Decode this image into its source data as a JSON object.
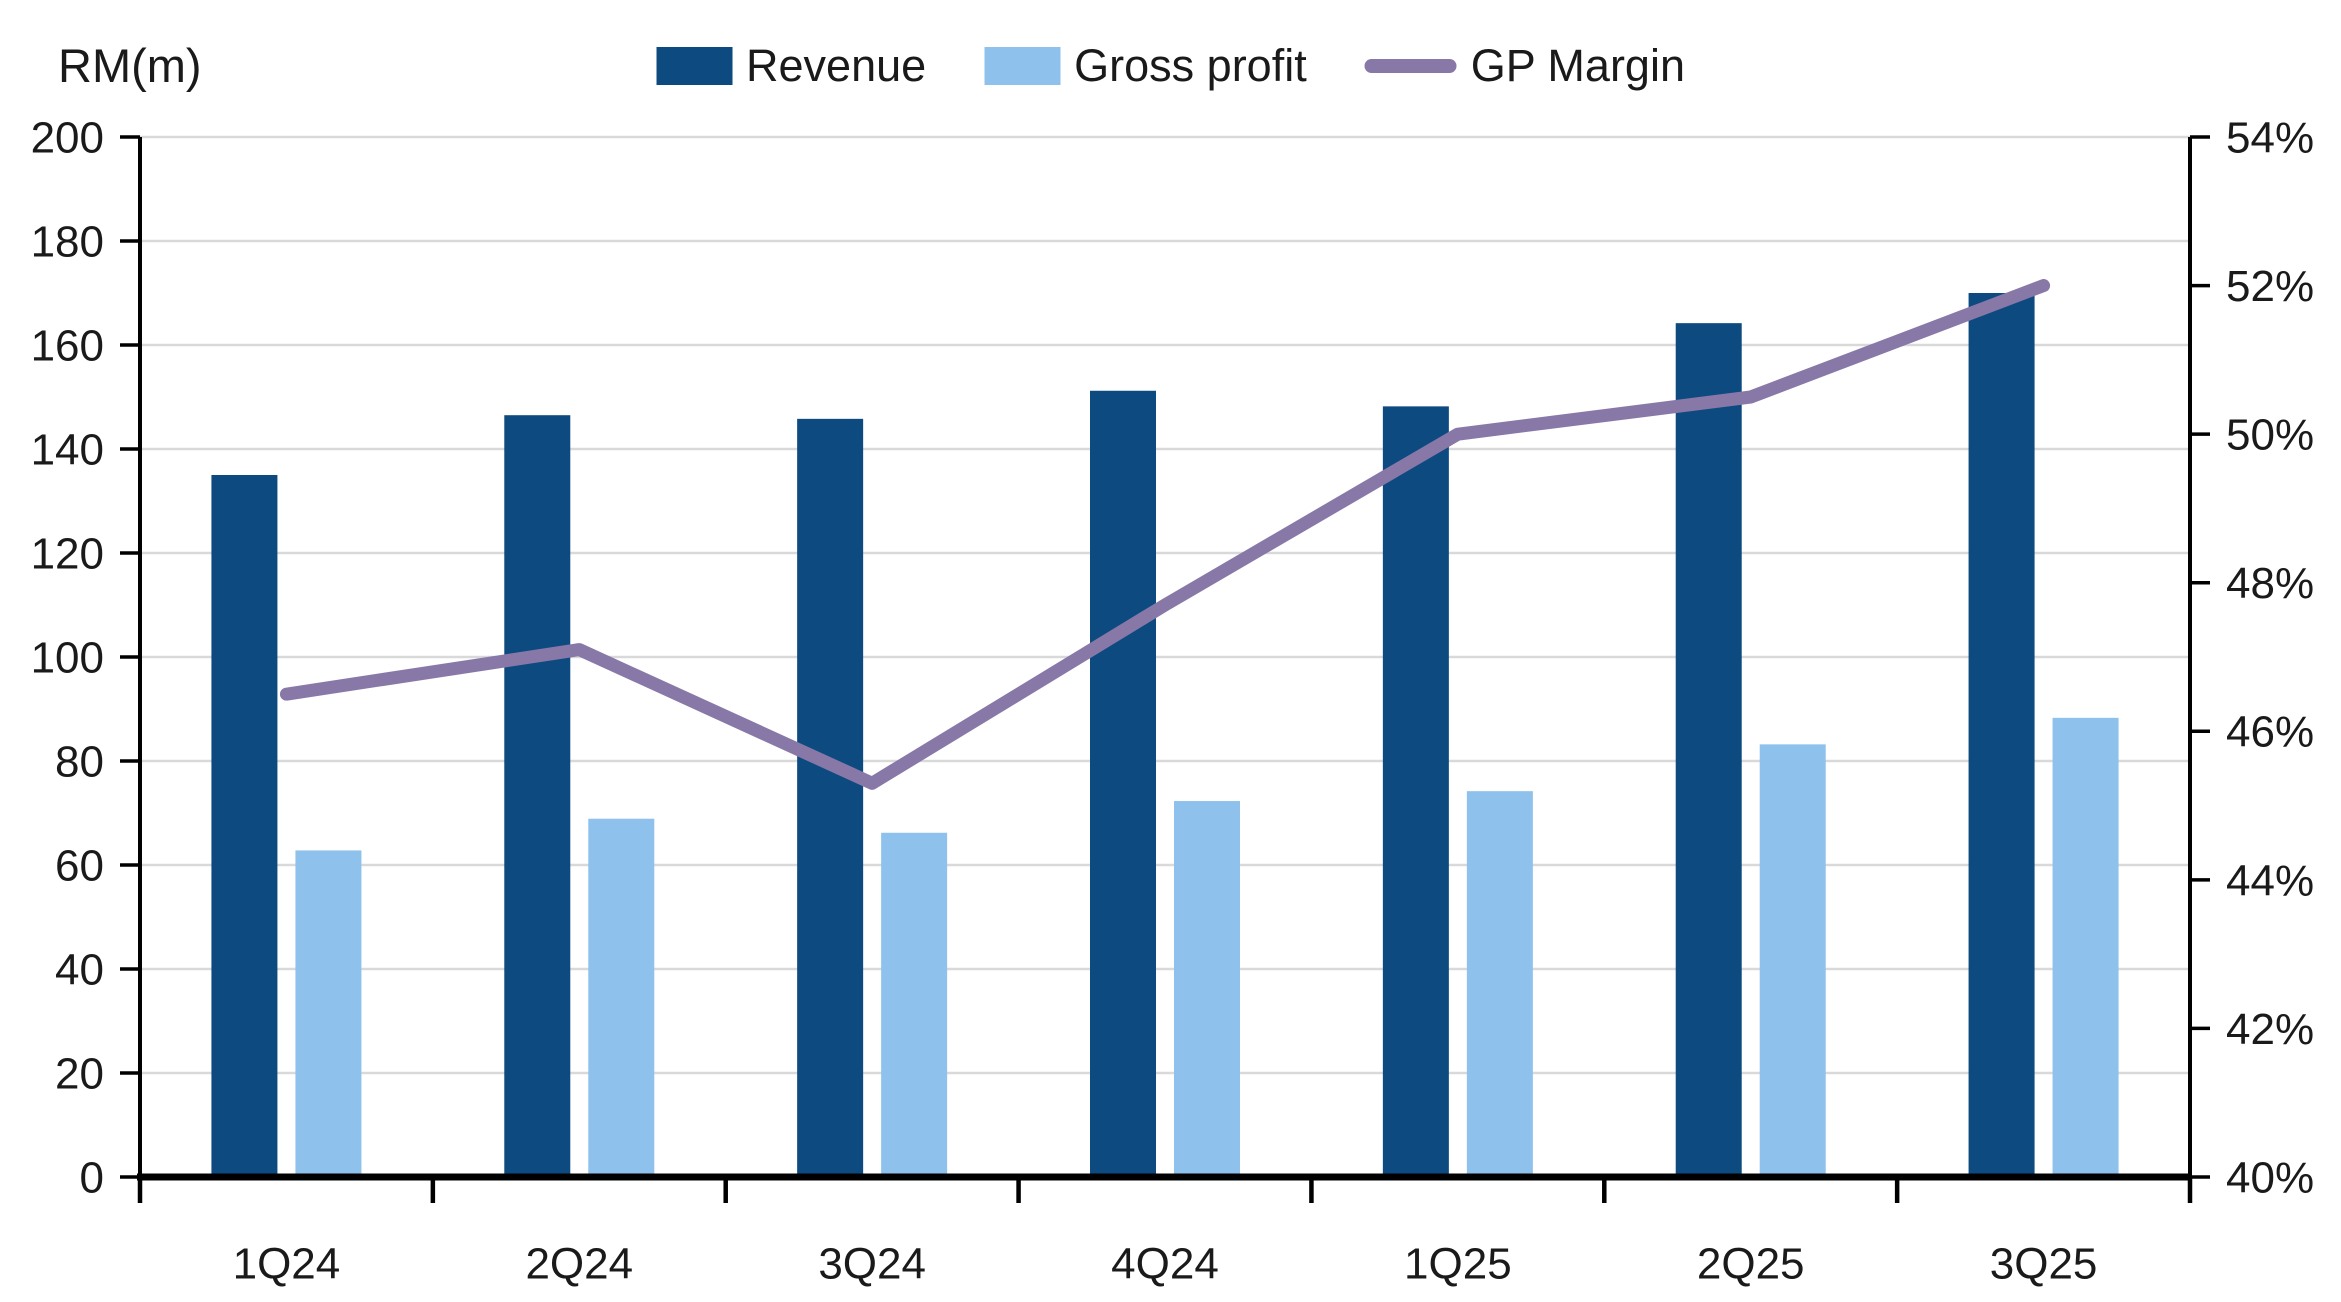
{
  "header": {
    "unit_label": "RM(m)"
  },
  "legend": [
    {
      "label": "Revenue",
      "swatch": "rect",
      "color": "#0d4a80"
    },
    {
      "label": "Gross profit",
      "swatch": "rect",
      "color": "#8ec1ec"
    },
    {
      "label": "GP Margin",
      "swatch": "line",
      "color": "#8878a8"
    }
  ],
  "chart_data": {
    "type": "bar",
    "subtype": "clustered-bar-with-line-combo",
    "title": "",
    "categories": [
      "1Q24",
      "2Q24",
      "3Q24",
      "4Q24",
      "1Q25",
      "2Q25",
      "3Q25"
    ],
    "series": [
      {
        "name": "Revenue",
        "type": "bar",
        "axis": "left",
        "color": "#0d4a80",
        "values": [
          135.0,
          146.5,
          145.8,
          151.2,
          148.2,
          164.2,
          170.0
        ]
      },
      {
        "name": "Gross profit",
        "type": "bar",
        "axis": "left",
        "color": "#8ec1ec",
        "values": [
          62.8,
          68.9,
          66.2,
          72.3,
          74.2,
          83.2,
          88.3
        ]
      },
      {
        "name": "GP Margin",
        "type": "line",
        "axis": "right",
        "color": "#8878a8",
        "values": [
          46.5,
          47.1,
          45.3,
          47.7,
          50.0,
          50.5,
          52.0
        ],
        "unit": "%"
      }
    ],
    "left_axis": {
      "label": "RM(m)",
      "min": 0,
      "max": 200,
      "step": 20,
      "tick_values": [
        0,
        20,
        40,
        60,
        80,
        100,
        120,
        140,
        160,
        180,
        200
      ],
      "tick_labels": [
        "0",
        "20",
        "40",
        "60",
        "80",
        "100",
        "120",
        "140",
        "160",
        "180",
        "200"
      ]
    },
    "right_axis": {
      "label": "",
      "min": 40,
      "max": 54,
      "step": 2,
      "tick_values": [
        40,
        42,
        44,
        46,
        48,
        50,
        52,
        54
      ],
      "tick_labels": [
        "40%",
        "42%",
        "44%",
        "46%",
        "48%",
        "50%",
        "52%",
        "54%"
      ]
    },
    "grid": "horizontal-on",
    "legend_position": "top-center",
    "colors": {
      "revenue_bar": "#0d4a80",
      "gross_profit_bar": "#8ec1ec",
      "gp_margin_line": "#8878a8",
      "gridline": "#d9d9d9",
      "axis": "#000000",
      "text": "#1a1a1a"
    }
  }
}
